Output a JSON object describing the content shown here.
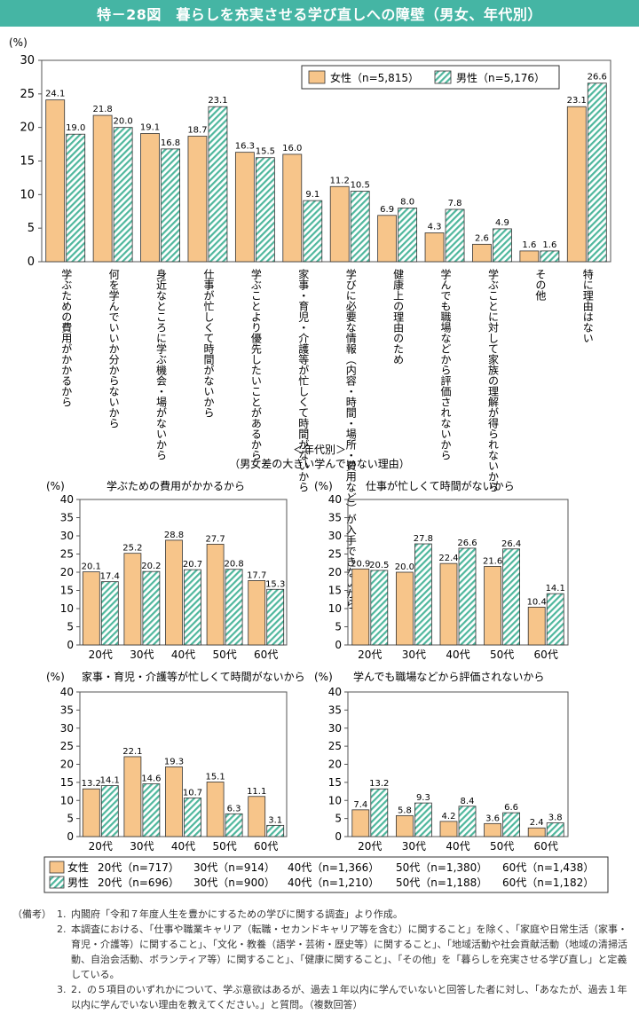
{
  "title": "特－28図　暮らしを充実させる学び直しへの障壁（男女、年代別）",
  "colors": {
    "female": "#f7c58a",
    "male_stripe": "#4fb79d",
    "title_bg": "#45b5a4"
  },
  "chart_data": [
    {
      "type": "bar",
      "ylabel": "(%)",
      "ylim": [
        0,
        30
      ],
      "yticks": [
        0,
        5,
        10,
        15,
        20,
        25,
        30
      ],
      "legend_position": "top-right",
      "categories": [
        "学ぶための費用がかかるから",
        "何を学んでいいか分からないから",
        "身近なところに学ぶ機会・場がないから",
        "仕事が忙しくて時間がないから",
        "学ぶことより優先したいことがあるから",
        "家事・育児・介護等が忙しくて時間がないから",
        "学びに必要な情報（内容・時間・場所・費用など）が入手できないから",
        "健康上の理由のため",
        "学んでも職場などから評価されないから",
        "学ぶことに対して家族の理解が得られないから",
        "その他",
        "特に理由はない"
      ],
      "series": [
        {
          "name": "女性（n=5,815）",
          "values": [
            24.1,
            21.8,
            19.1,
            18.7,
            16.3,
            16.0,
            11.2,
            6.9,
            4.3,
            2.6,
            1.6,
            23.1
          ]
        },
        {
          "name": "男性（n=5,176）",
          "values": [
            19.0,
            20.0,
            16.8,
            23.1,
            15.5,
            9.1,
            10.5,
            8.0,
            7.8,
            4.9,
            1.6,
            26.6
          ]
        }
      ]
    },
    {
      "type": "bar",
      "title": "学ぶための費用がかかるから",
      "ylabel": "(%)",
      "ylim": [
        0,
        40
      ],
      "yticks": [
        0,
        5,
        10,
        15,
        20,
        25,
        30,
        35,
        40
      ],
      "categories": [
        "20代",
        "30代",
        "40代",
        "50代",
        "60代"
      ],
      "series": [
        {
          "name": "女性",
          "values": [
            20.1,
            25.2,
            28.8,
            27.7,
            17.7
          ]
        },
        {
          "name": "男性",
          "values": [
            17.4,
            20.2,
            20.7,
            20.8,
            15.3
          ]
        }
      ]
    },
    {
      "type": "bar",
      "title": "仕事が忙しくて時間がないから",
      "ylabel": "(%)",
      "ylim": [
        0,
        40
      ],
      "yticks": [
        0,
        5,
        10,
        15,
        20,
        25,
        30,
        35,
        40
      ],
      "categories": [
        "20代",
        "30代",
        "40代",
        "50代",
        "60代"
      ],
      "series": [
        {
          "name": "女性",
          "values": [
            20.9,
            20.0,
            22.4,
            21.6,
            10.4
          ]
        },
        {
          "name": "男性",
          "values": [
            20.5,
            27.8,
            26.6,
            26.4,
            14.1
          ]
        }
      ]
    },
    {
      "type": "bar",
      "title": "家事・育児・介護等が忙しくて時間がないから",
      "ylabel": "(%)",
      "ylim": [
        0,
        40
      ],
      "yticks": [
        0,
        5,
        10,
        15,
        20,
        25,
        30,
        35,
        40
      ],
      "categories": [
        "20代",
        "30代",
        "40代",
        "50代",
        "60代"
      ],
      "series": [
        {
          "name": "女性",
          "values": [
            13.2,
            22.1,
            19.3,
            15.1,
            11.1
          ]
        },
        {
          "name": "男性",
          "values": [
            14.1,
            14.6,
            10.7,
            6.3,
            3.1
          ]
        }
      ]
    },
    {
      "type": "bar",
      "title": "学んでも職場などから評価されないから",
      "ylabel": "(%)",
      "ylim": [
        0,
        40
      ],
      "yticks": [
        0,
        5,
        10,
        15,
        20,
        25,
        30,
        35,
        40
      ],
      "categories": [
        "20代",
        "30代",
        "40代",
        "50代",
        "60代"
      ],
      "series": [
        {
          "name": "女性",
          "values": [
            7.4,
            5.8,
            4.2,
            3.6,
            2.4
          ]
        },
        {
          "name": "男性",
          "values": [
            13.2,
            9.3,
            8.4,
            6.6,
            3.8
          ]
        }
      ]
    }
  ],
  "age_section": {
    "heading": "＜年代別＞",
    "subheading": "（男女差の大きい学んでいない理由）"
  },
  "bottom_legend": {
    "female": {
      "label": "女性",
      "entries": [
        "20代（n=717）",
        "30代（n=914）",
        "40代（n=1,366）",
        "50代（n=1,380）",
        "60代（n=1,438）"
      ]
    },
    "male": {
      "label": "男性",
      "entries": [
        "20代（n=696）",
        "30代（n=900）",
        "40代（n=1,210）",
        "50代（n=1,188）",
        "60代（n=1,182）"
      ]
    }
  },
  "notes": {
    "head": "（備考）",
    "items": [
      {
        "num": "1.",
        "text": "内閣府「令和７年度人生を豊かにするための学びに関する調査」より作成。"
      },
      {
        "num": "2.",
        "text": "本調査における、「仕事や職業キャリア（転職・セカンドキャリア等を含む）に関すること」を除く、「家庭や日常生活（家事・育児・介護等）に関すること」、「文化・教養（語学・芸術・歴史等）に関すること」、「地域活動や社会貢献活動（地域の清掃活動、自治会活動、ボランティア等）に関すること」、「健康に関すること」、「その他」を「暮らしを充実させる学び直し」と定義している。"
      },
      {
        "num": "3.",
        "text": "2．の５項目のいずれかについて、学ぶ意欲はあるが、過去１年以内に学んでいないと回答した者に対し、「あなたが、過去１年以内に学んでいない理由を教えてください。」と質問。（複数回答）"
      }
    ]
  }
}
